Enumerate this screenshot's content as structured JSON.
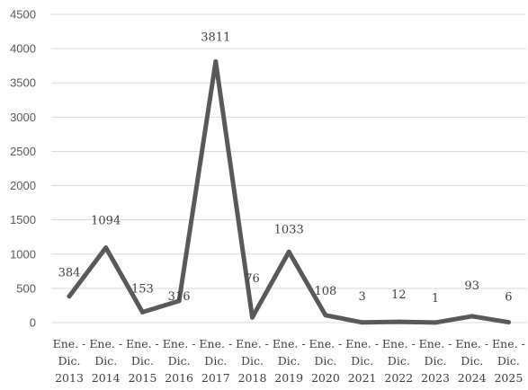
{
  "chart_data": {
    "type": "line",
    "title": "",
    "xlabel": "",
    "ylabel": "",
    "ylim": [
      0,
      4500
    ],
    "yticks": [
      0,
      500,
      1000,
      1500,
      2000,
      2500,
      3000,
      3500,
      4000,
      4500
    ],
    "grid": true,
    "legend": "none",
    "line_color": "#595959",
    "categories": [
      [
        "Ene. -",
        "Dic.",
        "2013"
      ],
      [
        "Ene. -",
        "Dic.",
        "2014"
      ],
      [
        "Ene. -",
        "Dic.",
        "2015"
      ],
      [
        "Ene. -",
        "Dic.",
        "2016"
      ],
      [
        "Ene. -",
        "Dic.",
        "2017"
      ],
      [
        "Ene. -",
        "Dic.",
        "2018"
      ],
      [
        "Ene. -",
        "Dic.",
        "2019"
      ],
      [
        "Ene. -",
        "Dic.",
        "2020"
      ],
      [
        "Ene. -",
        "Dic.",
        "2021"
      ],
      [
        "Ene. -",
        "Dic.",
        "2022"
      ],
      [
        "Ene. -",
        "Dic.",
        "2023"
      ],
      [
        "Ene. -",
        "Dic.",
        "2024"
      ],
      [
        "Ene. -",
        "Dic.",
        "2025"
      ]
    ],
    "series": [
      {
        "values": [
          384,
          1094,
          153,
          316,
          3811,
          76,
          1033,
          108,
          3,
          12,
          1,
          93,
          6
        ]
      }
    ]
  }
}
